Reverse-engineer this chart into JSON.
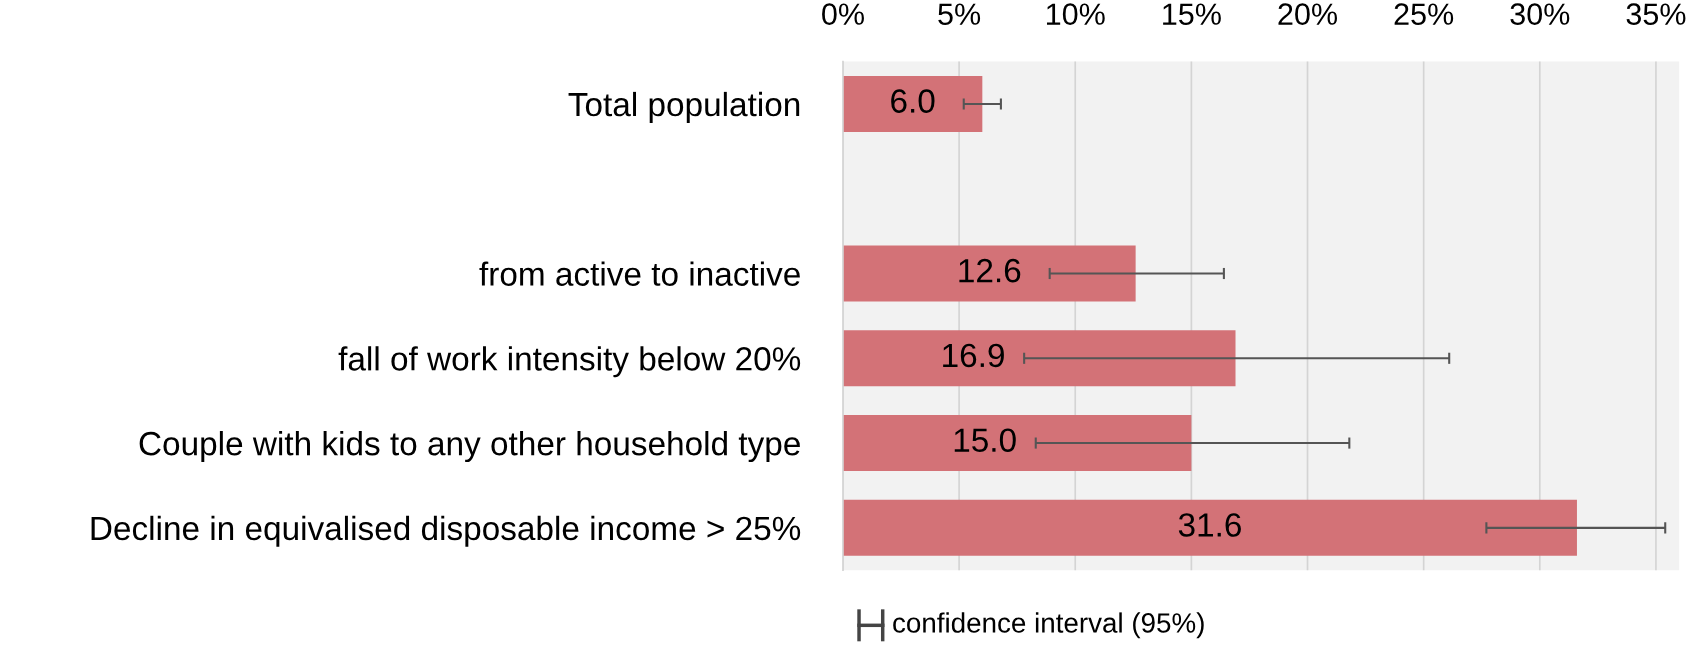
{
  "chart_data": {
    "type": "bar",
    "orientation": "horizontal",
    "categories": [
      "Total population",
      null,
      "from active to inactive",
      "fall of work intensity below 20%",
      "Couple with kids to any other household type",
      "Decline in equivalised disposable income > 25%"
    ],
    "series": [
      {
        "name": null,
        "color": "#d37277",
        "values": [
          6.0,
          null,
          12.6,
          16.9,
          15.0,
          31.6
        ],
        "errors": [
          [
            5.2,
            6.8
          ],
          null,
          [
            8.9,
            16.4
          ],
          [
            7.8,
            26.1
          ],
          [
            8.3,
            21.8
          ],
          [
            27.7,
            35.4
          ]
        ]
      }
    ],
    "value_labels": [
      "6.0",
      null,
      "12.6",
      "16.9",
      "15.0",
      "31.6"
    ],
    "xlim": [
      0,
      36
    ],
    "xticks": [
      {
        "value": 0,
        "label": "0%"
      },
      {
        "value": 5,
        "label": "5%"
      },
      {
        "value": 10,
        "label": "10%"
      },
      {
        "value": 15,
        "label": "15%"
      },
      {
        "value": 20,
        "label": "20%"
      },
      {
        "value": 25,
        "label": "25%"
      },
      {
        "value": 30,
        "label": "30%"
      },
      {
        "value": 35,
        "label": "35%"
      }
    ],
    "grid": "x",
    "annotations": [
      "confidence interval (95%)"
    ]
  }
}
